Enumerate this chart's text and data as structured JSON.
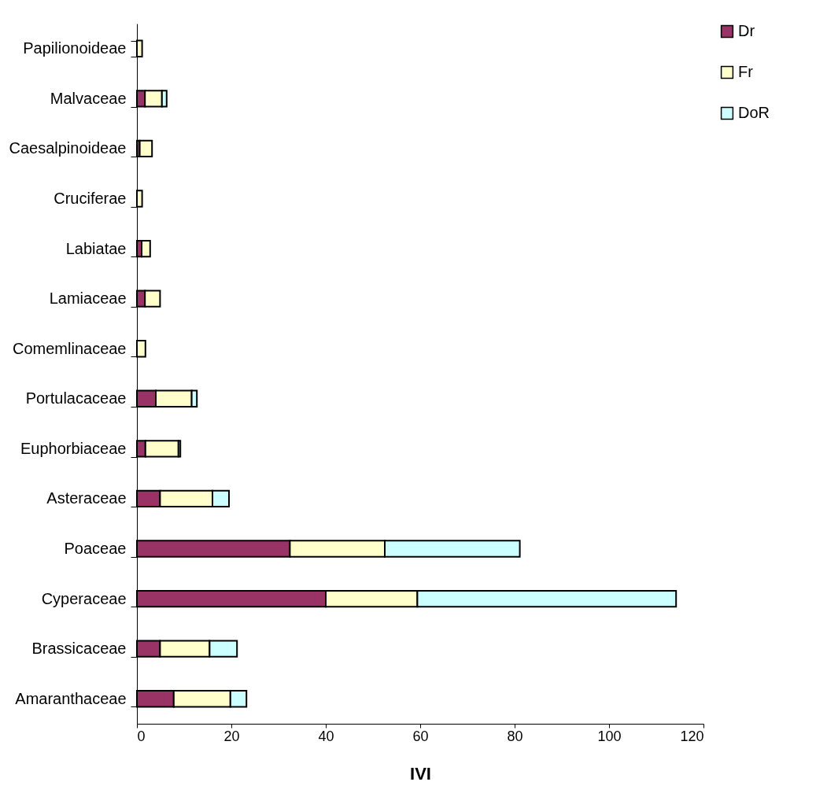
{
  "chart_data": {
    "type": "bar",
    "orientation": "horizontal",
    "stacked": true,
    "xlabel": "IVI",
    "categories": [
      "Papilionoideae",
      "Malvaceae",
      "Caesalpinoideae",
      "Cruciferae",
      "Labiatae",
      "Lamiaceae",
      "Comemlinaceae",
      "Portulacaceae",
      "Euphorbiaceae",
      "Asteraceae",
      "Poaceae",
      "Cyperaceae",
      "Brassicaceae",
      "Amaranthaceae"
    ],
    "series": [
      {
        "name": "Dr",
        "color": "#993366",
        "values": [
          null,
          1.7,
          0.6,
          null,
          1.0,
          1.7,
          null,
          4.0,
          1.8,
          4.9,
          32.4,
          40.0,
          4.9,
          7.8
        ]
      },
      {
        "name": "Fr",
        "color": "#ffffcc",
        "values": [
          1.1,
          3.6,
          2.6,
          1.1,
          1.8,
          3.2,
          1.8,
          7.6,
          7.0,
          11.1,
          20.1,
          19.4,
          10.5,
          12.0
        ]
      },
      {
        "name": "DoR",
        "color": "#ccffff",
        "values": [
          null,
          1.0,
          null,
          null,
          null,
          null,
          null,
          1.1,
          0.4,
          3.5,
          28.6,
          54.8,
          5.8,
          3.4
        ]
      }
    ],
    "xlim": [
      0,
      120
    ],
    "xticks": [
      0,
      20,
      40,
      60,
      80,
      100,
      120
    ],
    "grid": false,
    "legend": "right"
  }
}
